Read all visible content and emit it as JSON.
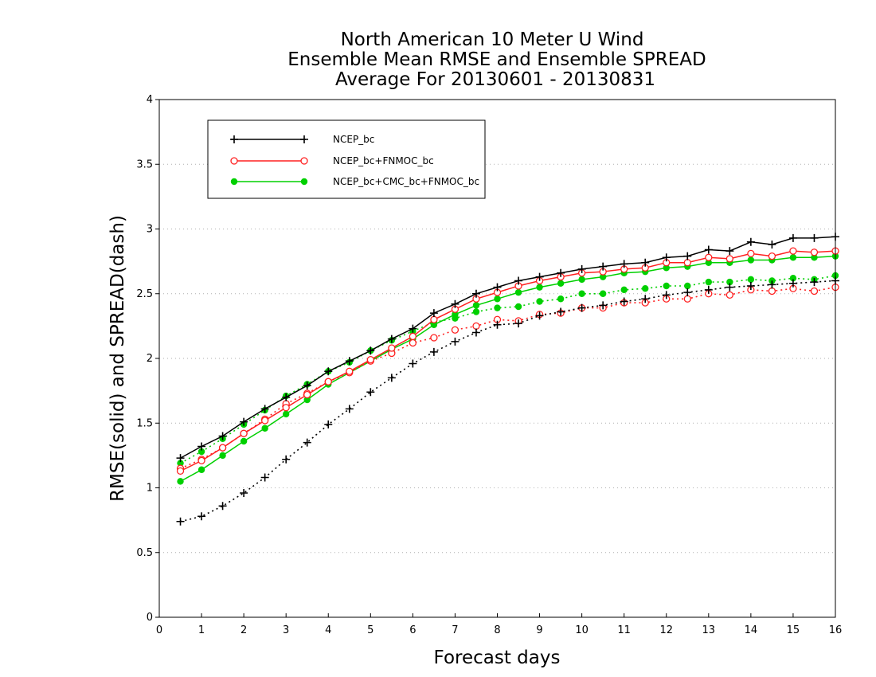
{
  "chart_data": {
    "type": "line",
    "title": [
      "North American 10 Meter U Wind",
      "Ensemble Mean RMSE and Ensemble SPREAD",
      "Average For 20130601 - 20130831"
    ],
    "xlabel": "Forecast days",
    "ylabel": "RMSE(solid) and SPREAD(dash)",
    "xlim": [
      0,
      16
    ],
    "ylim": [
      0,
      4
    ],
    "xticks": [
      "0",
      "1",
      "2",
      "3",
      "4",
      "5",
      "6",
      "7",
      "8",
      "9",
      "10",
      "11",
      "12",
      "13",
      "14",
      "15",
      "16"
    ],
    "yticks": [
      "0",
      "0.5",
      "1",
      "1.5",
      "2",
      "2.5",
      "3",
      "3.5",
      "4"
    ],
    "grid": "horizontal dotted",
    "legend_position": "top-left",
    "x": [
      0.5,
      1,
      1.5,
      2,
      2.5,
      3,
      3.5,
      4,
      4.5,
      5,
      5.5,
      6,
      6.5,
      7,
      7.5,
      8,
      8.5,
      9,
      9.5,
      10,
      10.5,
      11,
      11.5,
      12,
      12.5,
      13,
      13.5,
      14,
      14.5,
      15,
      15.5,
      16
    ],
    "series": [
      {
        "name": "NCEP_bc",
        "color": "#000000",
        "marker": "plus",
        "rmse": [
          1.23,
          1.32,
          1.4,
          1.51,
          1.61,
          1.7,
          1.79,
          1.9,
          1.98,
          2.06,
          2.15,
          2.23,
          2.35,
          2.42,
          2.5,
          2.55,
          2.6,
          2.63,
          2.66,
          2.69,
          2.71,
          2.73,
          2.74,
          2.78,
          2.79,
          2.84,
          2.83,
          2.9,
          2.88,
          2.93,
          2.93,
          2.94
        ],
        "spread": [
          0.74,
          0.78,
          0.86,
          0.96,
          1.08,
          1.22,
          1.35,
          1.49,
          1.61,
          1.74,
          1.85,
          1.96,
          2.05,
          2.13,
          2.2,
          2.26,
          2.27,
          2.33,
          2.36,
          2.39,
          2.41,
          2.44,
          2.46,
          2.49,
          2.51,
          2.53,
          2.55,
          2.56,
          2.57,
          2.58,
          2.59,
          2.6
        ]
      },
      {
        "name": "NCEP_bc+FNMOC_bc",
        "color": "#ff2020",
        "marker": "open-circle",
        "rmse": [
          1.13,
          1.21,
          1.31,
          1.42,
          1.52,
          1.62,
          1.72,
          1.82,
          1.9,
          1.99,
          2.08,
          2.17,
          2.3,
          2.38,
          2.46,
          2.51,
          2.56,
          2.6,
          2.63,
          2.66,
          2.67,
          2.69,
          2.7,
          2.74,
          2.74,
          2.78,
          2.77,
          2.81,
          2.79,
          2.83,
          2.82,
          2.83
        ],
        "spread": [
          1.15,
          1.22,
          1.31,
          1.42,
          1.53,
          1.65,
          1.73,
          1.82,
          1.89,
          1.98,
          2.04,
          2.12,
          2.16,
          2.22,
          2.25,
          2.3,
          2.29,
          2.34,
          2.35,
          2.39,
          2.39,
          2.43,
          2.43,
          2.46,
          2.46,
          2.5,
          2.49,
          2.53,
          2.52,
          2.54,
          2.52,
          2.55
        ]
      },
      {
        "name": "NCEP_bc+CMC_bc+FNMOC_bc",
        "color": "#00d000",
        "marker": "filled-circle",
        "rmse": [
          1.05,
          1.14,
          1.25,
          1.36,
          1.46,
          1.57,
          1.68,
          1.8,
          1.89,
          1.98,
          2.07,
          2.15,
          2.26,
          2.34,
          2.41,
          2.46,
          2.51,
          2.55,
          2.58,
          2.61,
          2.63,
          2.66,
          2.67,
          2.7,
          2.71,
          2.74,
          2.74,
          2.76,
          2.76,
          2.78,
          2.78,
          2.79
        ],
        "spread": [
          1.19,
          1.28,
          1.38,
          1.49,
          1.6,
          1.71,
          1.8,
          1.9,
          1.97,
          2.06,
          2.14,
          2.21,
          2.28,
          2.31,
          2.36,
          2.39,
          2.4,
          2.44,
          2.46,
          2.5,
          2.5,
          2.53,
          2.54,
          2.56,
          2.56,
          2.59,
          2.59,
          2.61,
          2.6,
          2.62,
          2.61,
          2.64
        ]
      }
    ]
  }
}
